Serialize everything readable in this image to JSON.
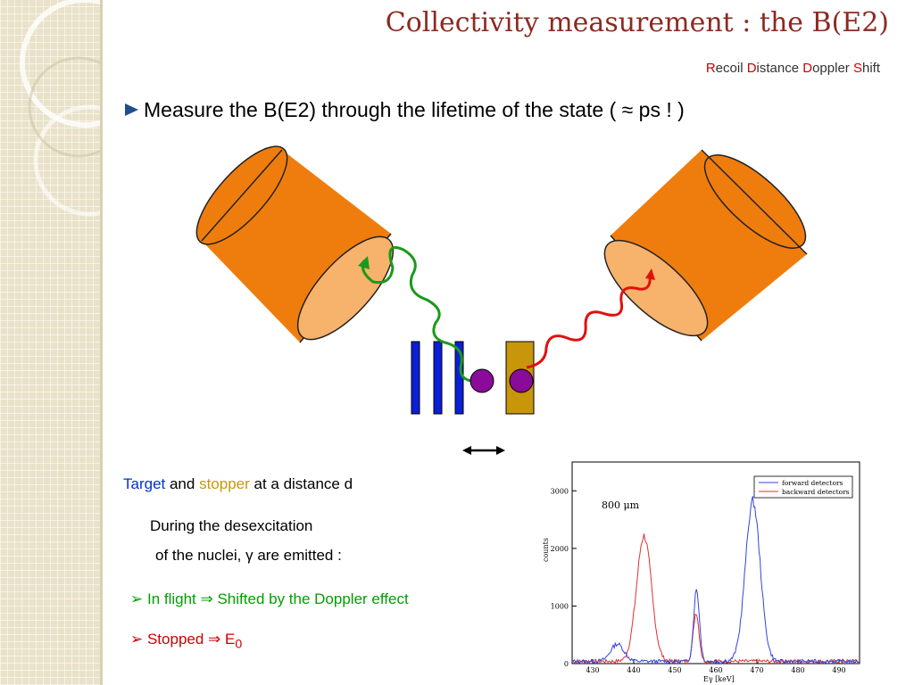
{
  "slide": {
    "title": "Collectivity measurement : the B(E2)",
    "subtitle": [
      {
        "hl": "R",
        "rest": "ecoil "
      },
      {
        "hl": "D",
        "rest": "istance "
      },
      {
        "hl": "D",
        "rest": "oppler "
      },
      {
        "hl": "S",
        "rest": "hift"
      }
    ],
    "bullet": "Measure the B(E2) through the lifetime of the state ( ≈ ps ! )"
  },
  "text": {
    "target_word": "Target",
    "and_word": " and ",
    "stopper_word": "stopper",
    "distance_rest": " at a distance d",
    "during": "During the desexcitation",
    "nuclei": "of the nuclei, γ are emitted :",
    "flight_arrow": "➢ ",
    "flight": "In flight  ⇒ Shifted by the Doppler effect",
    "stopped_arrow": "➢ ",
    "stopped": "Stopped ⇒ E",
    "stopped_sub": "0"
  },
  "spectrum": {
    "annotation": "800 μm",
    "ylabel": "counts",
    "xlabel": "Eγ [keV]",
    "legend": [
      "forward detectors",
      "backward detectors"
    ],
    "yticks": [
      "0",
      "1000",
      "2000",
      "3000"
    ],
    "xticks": [
      "430",
      "440",
      "450",
      "460",
      "470",
      "480",
      "490"
    ],
    "colors": {
      "forward": "#3344dd",
      "backward": "#e03030"
    }
  }
}
